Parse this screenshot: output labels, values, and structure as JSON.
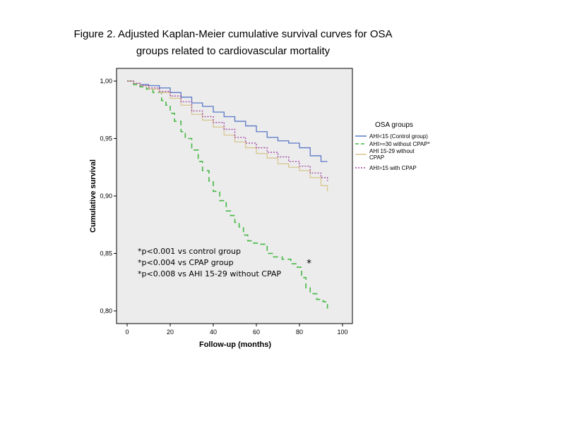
{
  "title_line1": "Figure 2. Adjusted Kaplan-Meier cumulative survival curves for OSA",
  "title_line2": "groups related to cardiovascular mortality",
  "chart_data": {
    "type": "line",
    "step": true,
    "title": "Figure 2. Adjusted Kaplan-Meier cumulative survival curves for OSA groups related to cardiovascular mortality",
    "xlabel": "Follow-up (months)",
    "ylabel": "Cumulative survival",
    "xlim": [
      0,
      100
    ],
    "ylim": [
      0.79,
      1.01
    ],
    "xticks": [
      0,
      20,
      40,
      60,
      80,
      100
    ],
    "xtick_labels": [
      "0",
      "20",
      "40",
      "60",
      "80",
      "100"
    ],
    "yticks": [
      0.8,
      0.85,
      0.9,
      0.95,
      1.0
    ],
    "ytick_labels": [
      "0,80",
      "0,85",
      "0,90",
      "0,95",
      "1,00"
    ],
    "grid": false,
    "background": "#ececec",
    "legend_title": "OSA groups",
    "legend_position": "right-outside",
    "series": [
      {
        "name": "AHI<15 (Control group)",
        "color": "#5a78c8",
        "dash": "solid",
        "x": [
          0,
          3,
          6,
          10,
          15,
          20,
          25,
          30,
          35,
          40,
          45,
          50,
          55,
          60,
          65,
          70,
          75,
          80,
          85,
          90,
          93
        ],
        "y": [
          1.0,
          0.998,
          0.997,
          0.996,
          0.994,
          0.99,
          0.986,
          0.981,
          0.978,
          0.973,
          0.969,
          0.965,
          0.961,
          0.956,
          0.951,
          0.948,
          0.946,
          0.942,
          0.935,
          0.93,
          0.93
        ]
      },
      {
        "name": "AHI>=30 without CPAP*",
        "color": "#44b844",
        "dash": "dashed",
        "x": [
          0,
          3,
          6,
          9,
          12,
          16,
          18,
          20,
          22,
          25,
          27,
          30,
          33,
          35,
          38,
          40,
          43,
          46,
          48,
          50,
          52,
          54,
          56,
          58,
          61,
          65,
          68,
          72,
          76,
          79,
          81,
          83,
          85,
          88,
          91,
          93
        ],
        "y": [
          1.0,
          0.997,
          0.995,
          0.993,
          0.99,
          0.983,
          0.979,
          0.972,
          0.965,
          0.956,
          0.95,
          0.94,
          0.93,
          0.922,
          0.913,
          0.904,
          0.896,
          0.887,
          0.883,
          0.877,
          0.873,
          0.866,
          0.861,
          0.859,
          0.858,
          0.85,
          0.847,
          0.845,
          0.841,
          0.838,
          0.829,
          0.82,
          0.815,
          0.81,
          0.808,
          0.802
        ]
      },
      {
        "name": "AHI 15-29 without CPAP",
        "color": "#d8c690",
        "dash": "solid",
        "x": [
          0,
          3,
          6,
          10,
          15,
          20,
          25,
          30,
          35,
          40,
          45,
          50,
          55,
          60,
          65,
          70,
          75,
          80,
          85,
          90,
          93
        ],
        "y": [
          1.0,
          0.998,
          0.996,
          0.993,
          0.99,
          0.985,
          0.979,
          0.971,
          0.966,
          0.96,
          0.953,
          0.947,
          0.942,
          0.937,
          0.933,
          0.928,
          0.925,
          0.922,
          0.916,
          0.909,
          0.904
        ]
      },
      {
        "name": "AHI>15 with CPAP",
        "color": "#a040a0",
        "dash": "dotted",
        "x": [
          0,
          3,
          6,
          10,
          15,
          20,
          25,
          30,
          35,
          40,
          45,
          50,
          55,
          60,
          65,
          70,
          75,
          80,
          85,
          90,
          93
        ],
        "y": [
          1.0,
          0.998,
          0.996,
          0.994,
          0.991,
          0.987,
          0.982,
          0.974,
          0.969,
          0.964,
          0.958,
          0.951,
          0.946,
          0.942,
          0.938,
          0.934,
          0.93,
          0.926,
          0.92,
          0.916,
          0.913
        ]
      }
    ],
    "annotations": [
      "*p<0.001 vs control group",
      "*p<0.004 vs CPAP group",
      "*p<0.008 vs AHI 15-29 without CPAP"
    ],
    "marker": {
      "text": "*",
      "x": 82,
      "y": 0.843
    }
  }
}
